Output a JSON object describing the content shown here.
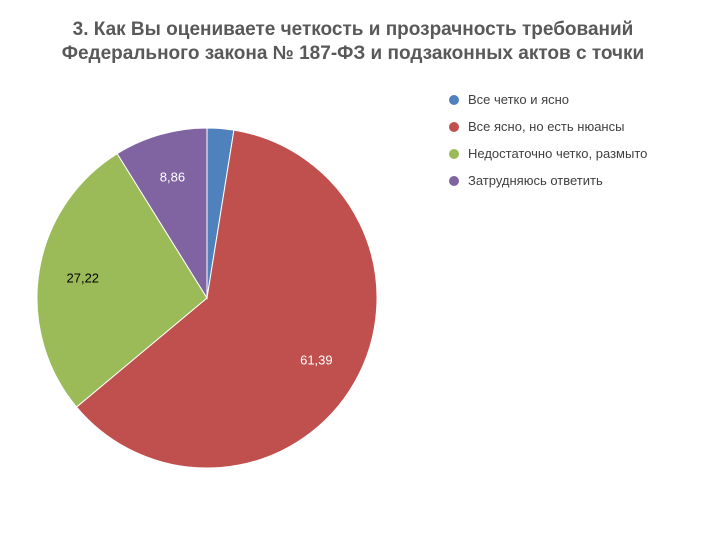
{
  "chart_data": {
    "type": "pie",
    "title_lines": [
      "3. Как Вы оцениваете четкость и прозрачность требований",
      "Федерального закона № 187-ФЗ и подзаконных актов с точки"
    ],
    "slices": [
      {
        "label": "Все четко и ясно",
        "value": 2.53,
        "display": "",
        "color": "#4f81bd",
        "label_color": "#ffffff"
      },
      {
        "label": "Все ясно, но есть нюансы",
        "value": 61.39,
        "display": "61,39",
        "color": "#c0504d",
        "label_color": "#ffffff"
      },
      {
        "label": "Недостаточно четко, размыто",
        "value": 27.22,
        "display": "27,22",
        "color": "#9bbb59",
        "label_color": "#000000"
      },
      {
        "label": "Затрудняюсь ответить",
        "value": 8.86,
        "display": "8,86",
        "color": "#8064a2",
        "label_color": "#ffffff"
      }
    ],
    "legend_position": "right"
  }
}
